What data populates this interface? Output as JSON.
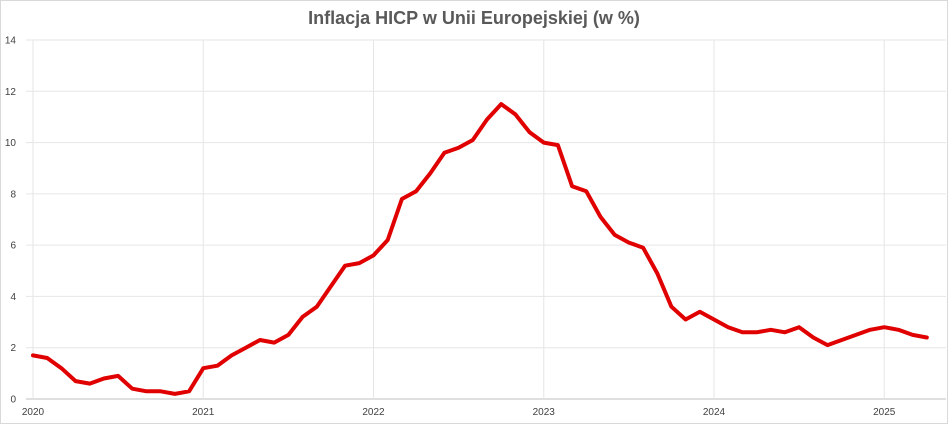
{
  "chart_data": {
    "type": "line",
    "title": "Inflacja HICP w Unii Europejskiej (w %)",
    "xlabel": "",
    "ylabel": "",
    "ylim": [
      0,
      14
    ],
    "y_ticks": [
      0,
      2,
      4,
      6,
      8,
      10,
      12,
      14
    ],
    "x_range": [
      "2020-01",
      "2025-04"
    ],
    "x_ticks": [
      "2020",
      "2021",
      "2022",
      "2023",
      "2024",
      "2025"
    ],
    "grid": true,
    "legend": "none",
    "line_color": "#e00000",
    "series": [
      {
        "x": [
          "2020-01",
          "2020-02",
          "2020-03",
          "2020-04",
          "2020-05",
          "2020-06",
          "2020-07",
          "2020-08",
          "2020-09",
          "2020-10",
          "2020-11",
          "2020-12",
          "2021-01",
          "2021-02",
          "2021-03",
          "2021-04",
          "2021-05",
          "2021-06",
          "2021-07",
          "2021-08",
          "2021-09",
          "2021-10",
          "2021-11",
          "2021-12",
          "2022-01",
          "2022-02",
          "2022-03",
          "2022-04",
          "2022-05",
          "2022-06",
          "2022-07",
          "2022-08",
          "2022-09",
          "2022-10",
          "2022-11",
          "2022-12",
          "2023-01",
          "2023-02",
          "2023-03",
          "2023-04",
          "2023-05",
          "2023-06",
          "2023-07",
          "2023-08",
          "2023-09",
          "2023-10",
          "2023-11",
          "2023-12",
          "2024-01",
          "2024-02",
          "2024-03",
          "2024-04",
          "2024-05",
          "2024-06",
          "2024-07",
          "2024-08",
          "2024-09",
          "2024-10",
          "2024-11",
          "2024-12",
          "2025-01",
          "2025-02",
          "2025-03",
          "2025-04"
        ],
        "values": [
          1.7,
          1.6,
          1.2,
          0.7,
          0.6,
          0.8,
          0.9,
          0.4,
          0.3,
          0.3,
          0.2,
          0.3,
          1.2,
          1.3,
          1.7,
          2.0,
          2.3,
          2.2,
          2.5,
          3.2,
          3.6,
          4.4,
          5.2,
          5.3,
          5.6,
          6.2,
          7.8,
          8.1,
          8.8,
          9.6,
          9.8,
          10.1,
          10.9,
          11.5,
          11.1,
          10.4,
          10.0,
          9.9,
          8.3,
          8.1,
          7.1,
          6.4,
          6.1,
          5.9,
          4.9,
          3.6,
          3.1,
          3.4,
          3.1,
          2.8,
          2.6,
          2.6,
          2.7,
          2.6,
          2.8,
          2.4,
          2.1,
          2.3,
          2.5,
          2.7,
          2.8,
          2.7,
          2.5,
          2.4
        ]
      }
    ]
  }
}
